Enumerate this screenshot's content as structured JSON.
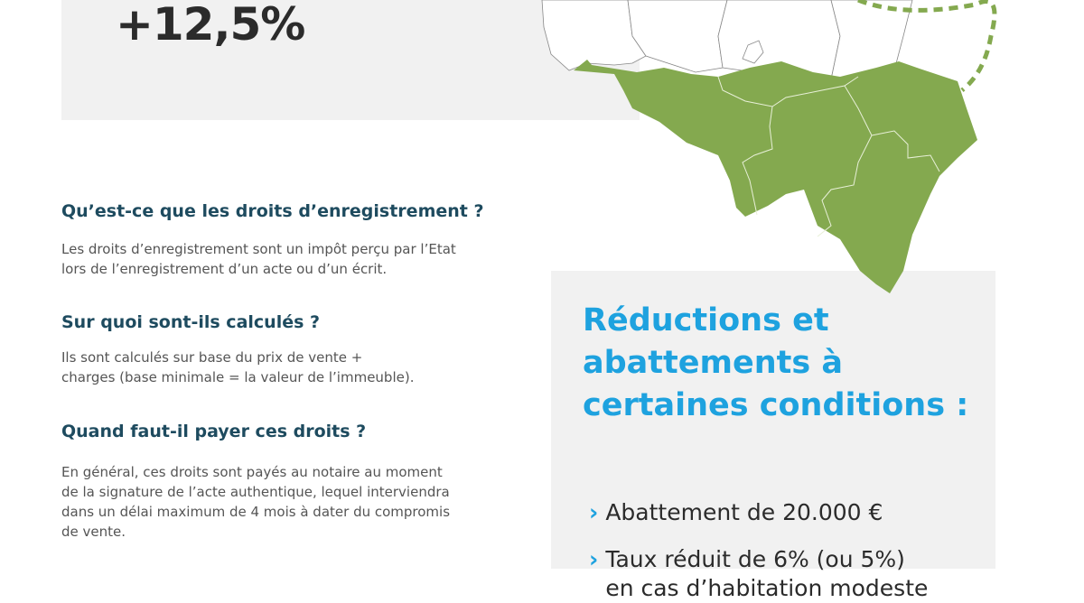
{
  "header": {
    "stat": "+12,5%"
  },
  "colors": {
    "panel": "#f1f1f1",
    "heading": "#1e4b5f",
    "accent": "#1ea2df",
    "map_fill": "#84a94f"
  },
  "faq": [
    {
      "question": "Qu’est-ce que les droits d’enregistrement ?",
      "answer": "Les droits d’enregistrement sont un impôt perçu par l’Etat\nlors de l’enregistrement d’un acte ou d’un écrit."
    },
    {
      "question": "Sur quoi sont-ils calculés ?",
      "answer": "Ils sont calculés sur base du prix de vente +\ncharges (base minimale = la valeur de l’immeuble)."
    },
    {
      "question": "Quand faut-il payer ces droits ?",
      "answer": "En général, ces droits sont payés au notaire au moment\nde la signature de l’acte authentique, lequel interviendra\ndans un délai maximum de 4 mois à dater du compromis\nde vente."
    }
  ],
  "reductions": {
    "title": "Réductions et\nabattements à\ncertaines conditions :",
    "items": [
      {
        "icon": "chevron-right-icon",
        "text": "Abattement de 20.000 €"
      },
      {
        "icon": "chevron-right-icon",
        "text": "Taux réduit de 6% (ou 5%)\nen cas d’habitation modeste"
      }
    ]
  }
}
